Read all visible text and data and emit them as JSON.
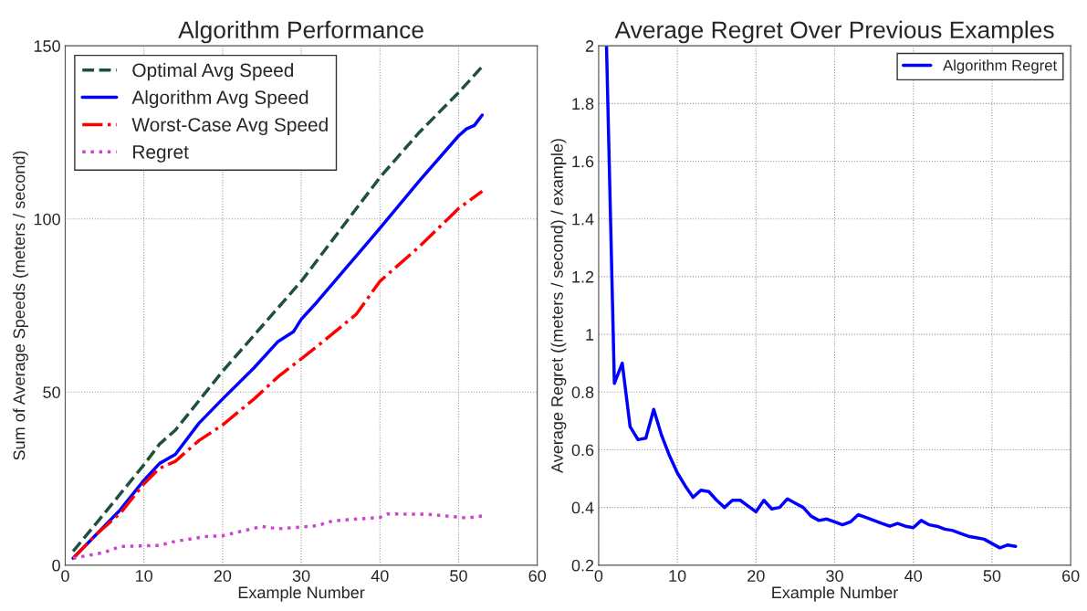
{
  "chart_data": [
    {
      "type": "line",
      "title": "Algorithm Performance",
      "xlabel": "Example Number",
      "ylabel": "Sum of Average Speeds (meters / second)",
      "xlim": [
        0,
        60
      ],
      "xticks": [
        0,
        10,
        20,
        30,
        40,
        50,
        60
      ],
      "ylim": [
        0,
        150
      ],
      "yticks": [
        0,
        50,
        100,
        150
      ],
      "grid": true,
      "legend": "top left",
      "series": [
        {
          "name": "Optimal Avg Speed",
          "color": "#1e5040",
          "line_style": "dashed",
          "x": [
            1,
            5,
            10,
            12,
            14,
            20,
            25,
            30,
            35,
            40,
            45,
            50,
            53
          ],
          "values": [
            4,
            15,
            29,
            35,
            39,
            56,
            69,
            82,
            97,
            112,
            125,
            136.5,
            144
          ]
        },
        {
          "name": "Algorithm Avg Speed",
          "color": "#0000ff",
          "line_style": "solid",
          "x": [
            1,
            4,
            7,
            10,
            12,
            14,
            17,
            20,
            24,
            27,
            29,
            30,
            32,
            35,
            40,
            45,
            50,
            51,
            52,
            53
          ],
          "values": [
            2,
            9,
            16,
            24.5,
            29.4,
            32,
            41,
            48,
            57,
            64.5,
            67.4,
            71,
            76,
            84,
            97.3,
            111,
            124,
            126,
            127,
            130
          ]
        },
        {
          "name": "Worst-Case Avg Speed",
          "color": "#ff0000",
          "line_style": "dashdot",
          "x": [
            1,
            4,
            7,
            10,
            12,
            14,
            17,
            20,
            24,
            27,
            30,
            33,
            37,
            40,
            45,
            50,
            53
          ],
          "values": [
            2,
            9,
            15,
            23.5,
            28,
            30,
            36,
            40.5,
            48,
            54.3,
            59.6,
            65,
            72.5,
            82,
            92,
            103,
            108
          ]
        },
        {
          "name": "Regret",
          "color": "#cc44cc",
          "line_style": "dotted",
          "x": [
            1,
            5,
            7,
            12,
            14,
            18,
            20,
            25,
            27,
            32,
            34,
            40,
            41,
            46,
            50,
            51,
            53
          ],
          "values": [
            2,
            3.7,
            5.4,
            5.7,
            6.9,
            8.3,
            8.5,
            11.2,
            10.5,
            11.4,
            12.8,
            13.8,
            14.8,
            14.7,
            13.9,
            13.6,
            14.2
          ]
        }
      ]
    },
    {
      "type": "line",
      "title": "Average Regret Over Previous Examples",
      "xlabel": "Example Number",
      "ylabel": "Average Regret ((meters / second) / example)",
      "xlim": [
        0,
        60
      ],
      "xticks": [
        0,
        10,
        20,
        30,
        40,
        50,
        60
      ],
      "ylim": [
        0.2,
        2
      ],
      "yticks": [
        0.2,
        0.4,
        0.6,
        0.8,
        1,
        1.2,
        1.4,
        1.6,
        1.8,
        2
      ],
      "grid": true,
      "legend": "top right",
      "series": [
        {
          "name": "Algorithm Regret",
          "color": "#0000ff",
          "line_style": "solid",
          "x": [
            1,
            2,
            3,
            4,
            5,
            6,
            7,
            8,
            9,
            10,
            11,
            12,
            13,
            14,
            15,
            16,
            17,
            18,
            19,
            20,
            21,
            22,
            23,
            24,
            25,
            26,
            27,
            28,
            29,
            30,
            31,
            32,
            33,
            34,
            35,
            36,
            37,
            38,
            39,
            40,
            41,
            42,
            43,
            44,
            45,
            46,
            47,
            48,
            49,
            50,
            51,
            52,
            53
          ],
          "values": [
            2,
            0.83,
            0.9,
            0.68,
            0.635,
            0.64,
            0.74,
            0.65,
            0.58,
            0.52,
            0.475,
            0.435,
            0.46,
            0.455,
            0.425,
            0.4,
            0.425,
            0.425,
            0.405,
            0.385,
            0.425,
            0.395,
            0.4,
            0.43,
            0.415,
            0.4,
            0.37,
            0.355,
            0.36,
            0.35,
            0.34,
            0.35,
            0.375,
            0.365,
            0.355,
            0.345,
            0.335,
            0.345,
            0.335,
            0.33,
            0.355,
            0.34,
            0.335,
            0.325,
            0.32,
            0.31,
            0.3,
            0.295,
            0.29,
            0.275,
            0.26,
            0.27,
            0.265
          ]
        }
      ]
    }
  ]
}
